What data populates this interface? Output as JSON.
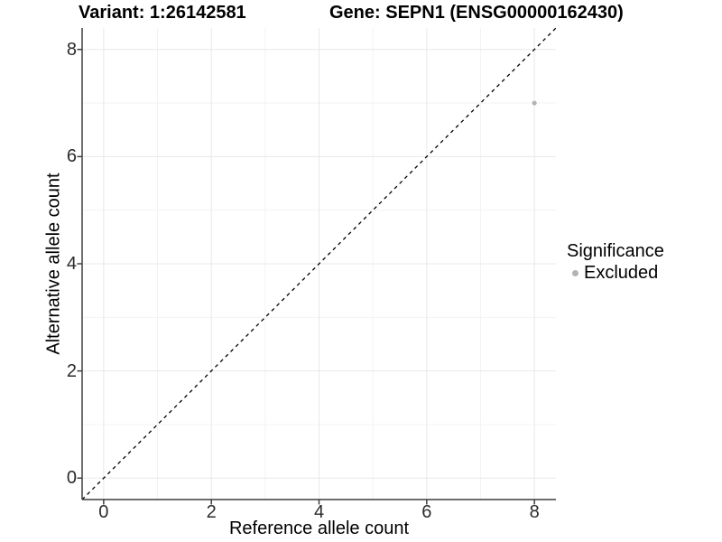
{
  "chart_data": {
    "type": "scatter",
    "title_left": "Variant: 1:26142581",
    "title_right": "Gene: SEPN1 (ENSG00000162430)",
    "xlabel": "Reference allele count",
    "ylabel": "Alternative allele count",
    "xlim": [
      -0.4,
      8.4
    ],
    "ylim": [
      -0.4,
      8.4
    ],
    "xticks": [
      0,
      2,
      4,
      6,
      8
    ],
    "yticks": [
      0,
      2,
      4,
      6,
      8
    ],
    "minor_xticks": [
      1,
      3,
      5,
      7
    ],
    "minor_yticks": [
      1,
      3,
      5,
      7
    ],
    "grid": "major+minor",
    "points": [
      {
        "x": 8,
        "y": 7,
        "series": "Excluded"
      }
    ],
    "reference_line": {
      "slope": 1,
      "intercept": 0,
      "style": "dashed",
      "color": "#000000"
    },
    "legend": {
      "title": "Significance",
      "position": "right",
      "entries": [
        {
          "label": "Excluded",
          "color": "#b3b3b3"
        }
      ]
    }
  },
  "colors": {
    "background": "#ffffff",
    "grid_major": "#e8e8e8",
    "grid_minor": "#f3f3f3",
    "axis_line": "#3d3d3d",
    "point_excluded": "#b3b3b3",
    "tick_text": "#2b2b2b",
    "title_text": "#000000"
  }
}
